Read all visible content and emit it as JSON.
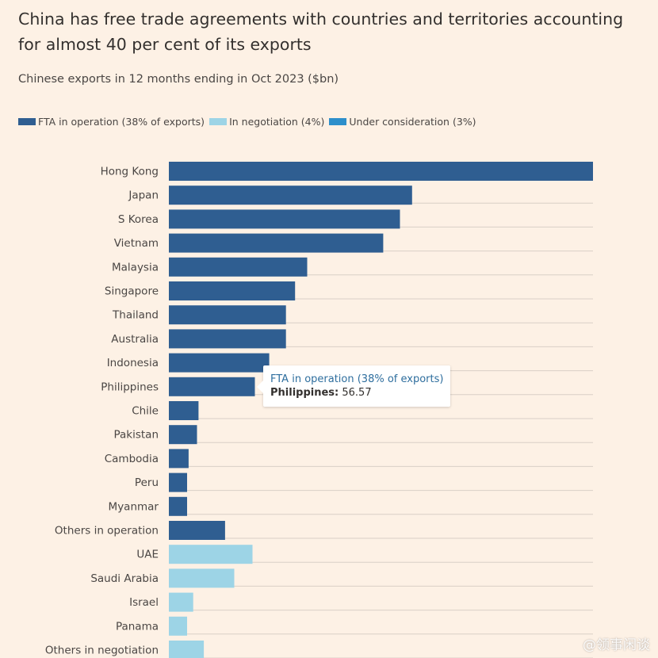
{
  "title": "China has free trade agreements with countries and territories accounting for almost 40 per cent of its exports",
  "subtitle": "Chinese exports in 12 months ending in Oct 2023 ($bn)",
  "colors": {
    "background": "#FDF1E5",
    "fta": "#2F5E91",
    "negotiation": "#9DD4E6",
    "consideration": "#2D8FCB",
    "grid": "#D9CFC6"
  },
  "legend": [
    {
      "label": "FTA in operation (38% of exports)",
      "color": "#2F5E91"
    },
    {
      "label": "In negotiation (4%)",
      "color": "#9DD4E6"
    },
    {
      "label": "Under consideration (3%)",
      "color": "#2D8FCB"
    }
  ],
  "tooltip": {
    "series": "FTA in operation (38% of exports)",
    "label": "Philippines:",
    "value": "56.57"
  },
  "watermark": "@领事闲谈",
  "chart_data": {
    "type": "bar",
    "orientation": "horizontal",
    "categories": [
      "Hong Kong",
      "Japan",
      "S Korea",
      "Vietnam",
      "Malaysia",
      "Singapore",
      "Thailand",
      "Australia",
      "Indonesia",
      "Philippines",
      "Chile",
      "Pakistan",
      "Cambodia",
      "Peru",
      "Myanmar",
      "Others in operation",
      "UAE",
      "Saudi Arabia",
      "Israel",
      "Panama",
      "Others in negotiation"
    ],
    "values": [
      279,
      160,
      152,
      141,
      91,
      83,
      77,
      77,
      66,
      56.57,
      19.5,
      18.5,
      13,
      12,
      12,
      37,
      55,
      43,
      16,
      12,
      23
    ],
    "groups": [
      "fta",
      "fta",
      "fta",
      "fta",
      "fta",
      "fta",
      "fta",
      "fta",
      "fta",
      "fta",
      "fta",
      "fta",
      "fta",
      "fta",
      "fta",
      "fta",
      "negotiation",
      "negotiation",
      "negotiation",
      "negotiation",
      "negotiation"
    ],
    "xlim": [
      0,
      279
    ],
    "grid": true,
    "legend_position": "top-left"
  }
}
